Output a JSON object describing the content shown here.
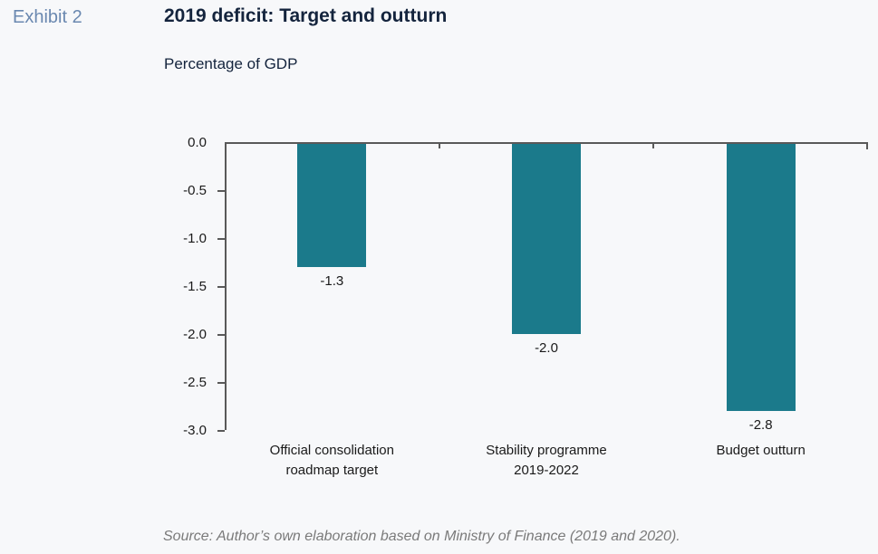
{
  "page": {
    "exhibit_label": "Exhibit 2",
    "title": "2019 deficit: Target and outturn",
    "subtitle": "Percentage of GDP",
    "source": "Source: Author’s own elaboration based on Ministry of Finance (2019 and 2020)."
  },
  "colors": {
    "background": "#f7f8fa",
    "bar": "#1b7a8b",
    "axis": "#595959",
    "title": "#14243d",
    "exhibit": "#6a88b0",
    "text": "#1a1a1a",
    "source": "#7a7a7a"
  },
  "chart_data": {
    "type": "bar",
    "title": "2019 deficit: Target and outturn",
    "subtitle": "Percentage of GDP",
    "categories": [
      "Official consolidation roadmap target",
      "Stability programme 2019-2022",
      "Budget outturn"
    ],
    "category_label_lines": [
      [
        "Official consolidation",
        "roadmap target"
      ],
      [
        "Stability programme",
        "2019-2022"
      ],
      [
        "Budget outturn"
      ]
    ],
    "values": [
      -1.3,
      -2.0,
      -2.8
    ],
    "data_labels": [
      "-1.3",
      "-2.0",
      "-2.8"
    ],
    "xlabel": "",
    "ylabel": "Percentage of GDP",
    "ylim": [
      -3.0,
      0.0
    ],
    "ytick_labels": [
      "0.0",
      "-0.5",
      "-1.0",
      "-1.5",
      "-2.0",
      "-2.5",
      "-3.0"
    ],
    "ytick_values": [
      0.0,
      -0.5,
      -1.0,
      -1.5,
      -2.0,
      -2.5,
      -3.0
    ],
    "grid": false,
    "legend": "none",
    "source": "Source: Author’s own elaboration based on Ministry of Finance (2019 and 2020)."
  }
}
